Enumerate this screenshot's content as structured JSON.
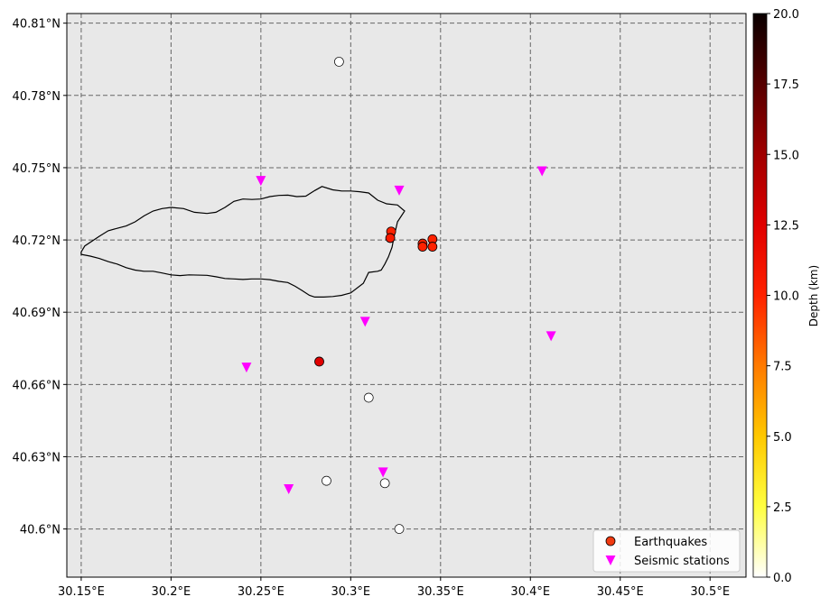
{
  "chart_data": {
    "type": "scatter",
    "projection": "map",
    "xlim": [
      30.142,
      30.52
    ],
    "ylim": [
      40.58,
      40.814
    ],
    "x_ticks": [
      {
        "value": 30.15,
        "label": "30.15°E"
      },
      {
        "value": 30.2,
        "label": "30.2°E"
      },
      {
        "value": 30.25,
        "label": "30.25°E"
      },
      {
        "value": 30.3,
        "label": "30.3°E"
      },
      {
        "value": 30.35,
        "label": "30.35°E"
      },
      {
        "value": 30.4,
        "label": "30.4°E"
      },
      {
        "value": 30.45,
        "label": "30.45°E"
      },
      {
        "value": 30.5,
        "label": "30.5°E"
      }
    ],
    "y_ticks": [
      {
        "value": 40.6,
        "label": "40.6°N"
      },
      {
        "value": 40.63,
        "label": "40.63°N"
      },
      {
        "value": 40.66,
        "label": "40.66°N"
      },
      {
        "value": 40.69,
        "label": "40.69°N"
      },
      {
        "value": 40.72,
        "label": "40.72°N"
      },
      {
        "value": 40.75,
        "label": "40.75°N"
      },
      {
        "value": 40.78,
        "label": "40.78°N"
      },
      {
        "value": 40.81,
        "label": "40.81°N"
      }
    ],
    "grid": true,
    "background_color": "#e8e8e8",
    "grid_color": "#666666",
    "legend_position": "bottom-right",
    "lake_outline": [
      [
        30.15,
        40.715
      ],
      [
        30.152,
        40.7175
      ],
      [
        30.16,
        40.7215
      ],
      [
        30.165,
        40.7238
      ],
      [
        30.17,
        40.7248
      ],
      [
        30.175,
        40.7258
      ],
      [
        30.18,
        40.7275
      ],
      [
        30.185,
        40.73
      ],
      [
        30.19,
        40.732
      ],
      [
        30.195,
        40.733
      ],
      [
        30.2,
        40.7335
      ],
      [
        30.207,
        40.733
      ],
      [
        30.213,
        40.7315
      ],
      [
        30.22,
        40.731
      ],
      [
        30.225,
        40.7315
      ],
      [
        30.23,
        40.7335
      ],
      [
        30.235,
        40.736
      ],
      [
        30.24,
        40.737
      ],
      [
        30.245,
        40.7368
      ],
      [
        30.25,
        40.737
      ],
      [
        30.255,
        40.738
      ],
      [
        30.26,
        40.7385
      ],
      [
        30.265,
        40.7386
      ],
      [
        30.27,
        40.738
      ],
      [
        30.275,
        40.7382
      ],
      [
        30.28,
        40.7405
      ],
      [
        30.284,
        40.7422
      ],
      [
        30.29,
        40.7408
      ],
      [
        30.295,
        40.7403
      ],
      [
        30.3,
        40.7403
      ],
      [
        30.305,
        40.74
      ],
      [
        30.31,
        40.7395
      ],
      [
        30.315,
        40.7365
      ],
      [
        30.32,
        40.735
      ],
      [
        30.326,
        40.7345
      ],
      [
        30.33,
        40.732
      ],
      [
        30.326,
        40.7275
      ],
      [
        30.324,
        40.721
      ],
      [
        30.323,
        40.717
      ],
      [
        30.321,
        40.713
      ],
      [
        30.319,
        40.71
      ],
      [
        30.317,
        40.7075
      ],
      [
        30.315,
        40.707
      ],
      [
        30.31,
        40.7065
      ],
      [
        30.307,
        40.702
      ],
      [
        30.3,
        40.698
      ],
      [
        30.295,
        40.697
      ],
      [
        30.29,
        40.6965
      ],
      [
        30.285,
        40.6963
      ],
      [
        30.28,
        40.6963
      ],
      [
        30.277,
        40.697
      ],
      [
        30.273,
        40.699
      ],
      [
        30.269,
        40.7008
      ],
      [
        30.265,
        40.7023
      ],
      [
        30.26,
        40.7028
      ],
      [
        30.255,
        40.7035
      ],
      [
        30.25,
        40.7038
      ],
      [
        30.245,
        40.7038
      ],
      [
        30.24,
        40.7036
      ],
      [
        30.235,
        40.7038
      ],
      [
        30.23,
        40.704
      ],
      [
        30.225,
        40.7047
      ],
      [
        30.22,
        40.7053
      ],
      [
        30.21,
        40.7055
      ],
      [
        30.205,
        40.7052
      ],
      [
        30.2,
        40.7055
      ],
      [
        30.195,
        40.7063
      ],
      [
        30.19,
        40.707
      ],
      [
        30.185,
        40.707
      ],
      [
        30.18,
        40.7075
      ],
      [
        30.175,
        40.7085
      ],
      [
        30.17,
        40.71
      ],
      [
        30.165,
        40.711
      ],
      [
        30.16,
        40.7123
      ],
      [
        30.155,
        40.7133
      ],
      [
        30.15,
        40.714
      ]
    ],
    "earthquakes": [
      {
        "lon": 30.3225,
        "lat": 40.7235,
        "depth": 10.0
      },
      {
        "lon": 30.322,
        "lat": 40.7208,
        "depth": 10.5
      },
      {
        "lon": 30.34,
        "lat": 40.7185,
        "depth": 10.0
      },
      {
        "lon": 30.34,
        "lat": 40.7172,
        "depth": 10.0
      },
      {
        "lon": 30.3455,
        "lat": 40.7203,
        "depth": 10.0
      },
      {
        "lon": 30.3455,
        "lat": 40.7172,
        "depth": 10.0
      },
      {
        "lon": 30.2825,
        "lat": 40.6695,
        "depth": 12.5
      }
    ],
    "unlocated_events": [
      {
        "lon": 30.2935,
        "lat": 40.794
      },
      {
        "lon": 30.31,
        "lat": 40.6545
      },
      {
        "lon": 30.2865,
        "lat": 40.62
      },
      {
        "lon": 30.327,
        "lat": 40.6
      },
      {
        "lon": 30.319,
        "lat": 40.619
      }
    ],
    "stations": [
      {
        "lon": 30.25,
        "lat": 40.7445
      },
      {
        "lon": 30.327,
        "lat": 40.7405
      },
      {
        "lon": 30.4065,
        "lat": 40.7485
      },
      {
        "lon": 30.308,
        "lat": 40.686
      },
      {
        "lon": 30.4115,
        "lat": 40.68
      },
      {
        "lon": 30.242,
        "lat": 40.667
      },
      {
        "lon": 30.318,
        "lat": 40.6235
      },
      {
        "lon": 30.2655,
        "lat": 40.6165
      }
    ],
    "legend": [
      {
        "label": "Earthquakes",
        "marker": "circle",
        "color": "#f03a10"
      },
      {
        "label": "Seismic stations",
        "marker": "triangle-down",
        "color": "#ff00ff"
      }
    ],
    "colorbar": {
      "label": "Depth (km)",
      "range": [
        0,
        20
      ],
      "ticks": [
        "0.0",
        "2.5",
        "5.0",
        "7.5",
        "10.0",
        "12.5",
        "15.0",
        "17.5",
        "20.0"
      ],
      "colormap": "hot_r"
    }
  }
}
